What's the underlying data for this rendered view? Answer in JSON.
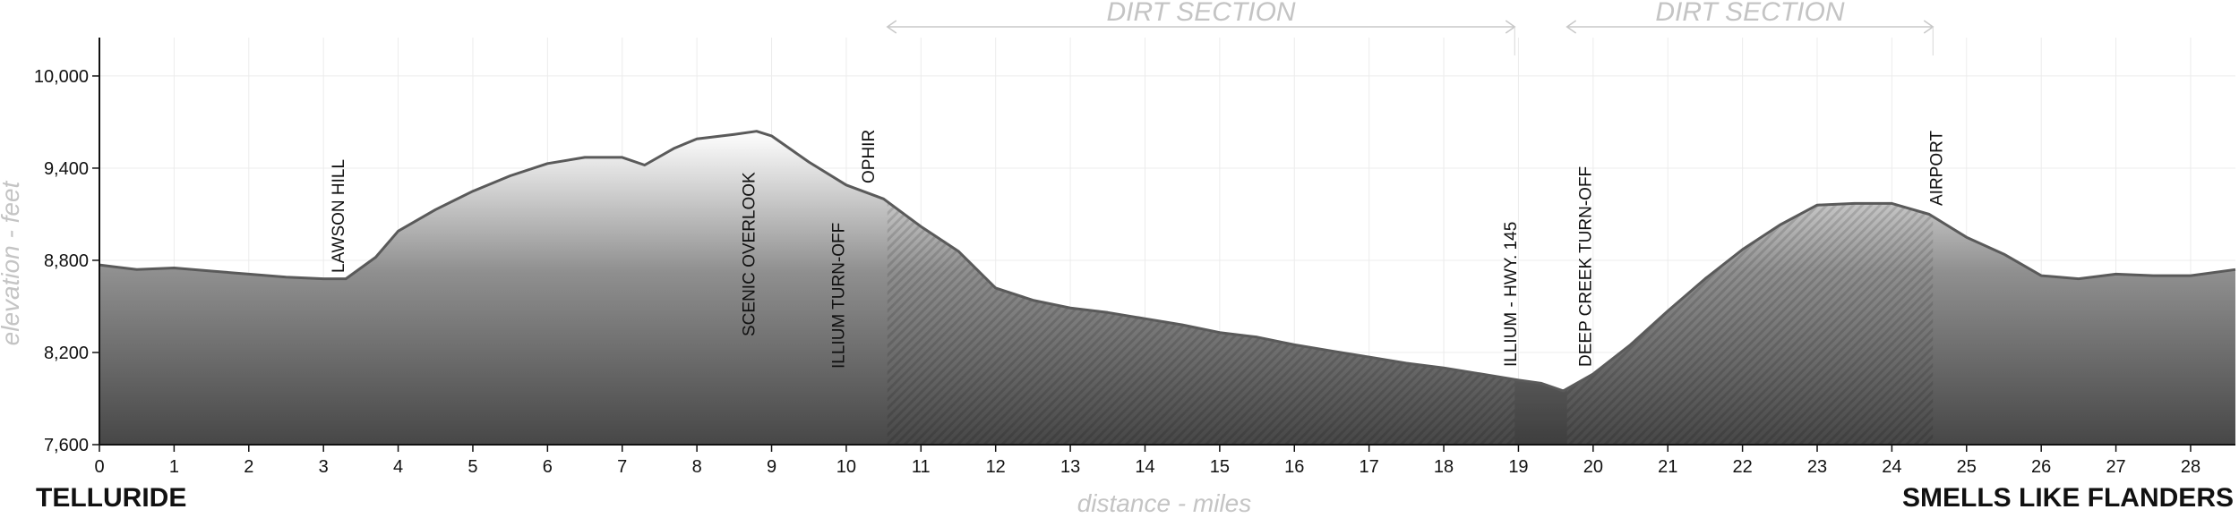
{
  "chart_data": {
    "type": "area",
    "xlabel": "distance - miles",
    "ylabel": "elevation - feet",
    "xlim": [
      0,
      28.6
    ],
    "ylim": [
      7600,
      10250
    ],
    "x_ticks": [
      0,
      1,
      2,
      3,
      4,
      5,
      6,
      7,
      8,
      9,
      10,
      11,
      12,
      13,
      14,
      15,
      16,
      17,
      18,
      19,
      20,
      21,
      22,
      23,
      24,
      25,
      26,
      27,
      28
    ],
    "y_ticks": [
      7600,
      8200,
      8800,
      9400,
      10000
    ],
    "y_tick_labels": [
      "7,600",
      "8,200",
      "8,800",
      "9,400",
      "10,000"
    ],
    "grid": true,
    "start_label": "TELLURIDE",
    "end_label": "SMELLS LIKE FLANDERS",
    "series": [
      {
        "x": [
          0,
          0.5,
          1,
          1.5,
          2,
          2.5,
          3,
          3.3,
          3.7,
          4,
          4.5,
          5,
          5.5,
          6,
          6.5,
          7,
          7.3,
          7.7,
          8,
          8.5,
          8.8,
          9,
          9.5,
          10,
          10.5,
          11,
          11.5,
          12,
          12.5,
          13,
          13.5,
          14,
          14.5,
          15,
          15.5,
          16,
          16.5,
          17,
          17.5,
          18,
          18.5,
          19,
          19.3,
          19.6,
          20,
          20.5,
          21,
          21.5,
          22,
          22.5,
          23,
          23.5,
          24,
          24.5,
          25,
          25.5,
          26,
          26.5,
          27,
          27.5,
          28,
          28.6
        ],
        "y": [
          8770,
          8740,
          8750,
          8730,
          8710,
          8690,
          8680,
          8680,
          8820,
          8990,
          9130,
          9250,
          9350,
          9430,
          9470,
          9470,
          9420,
          9530,
          9590,
          9620,
          9640,
          9610,
          9440,
          9290,
          9200,
          9020,
          8860,
          8620,
          8540,
          8490,
          8460,
          8420,
          8380,
          8330,
          8300,
          8250,
          8210,
          8170,
          8130,
          8100,
          8060,
          8020,
          8000,
          7950,
          8060,
          8250,
          8470,
          8680,
          8870,
          9030,
          9160,
          9170,
          9170,
          9100,
          8950,
          8840,
          8700,
          8680,
          8710,
          8700,
          8700,
          8740
        ]
      }
    ],
    "waypoints": [
      {
        "name": "LAWSON HILL",
        "x": 3.2
      },
      {
        "name": "SCENIC OVERLOOK",
        "x": 8.7
      },
      {
        "name": "ILLIUM TURN-OFF",
        "x": 9.9
      },
      {
        "name": "OPHIR",
        "x": 10.3
      },
      {
        "name": "ILLIUM - HWY. 145",
        "x": 18.9
      },
      {
        "name": "DEEP CREEK TURN-OFF",
        "x": 19.9
      },
      {
        "name": "AIRPORT",
        "x": 24.6
      }
    ],
    "sections": [
      {
        "label": "DIRT SECTION",
        "start": 10.55,
        "end": 18.95
      },
      {
        "label": "DIRT SECTION",
        "start": 19.65,
        "end": 24.55
      }
    ]
  }
}
